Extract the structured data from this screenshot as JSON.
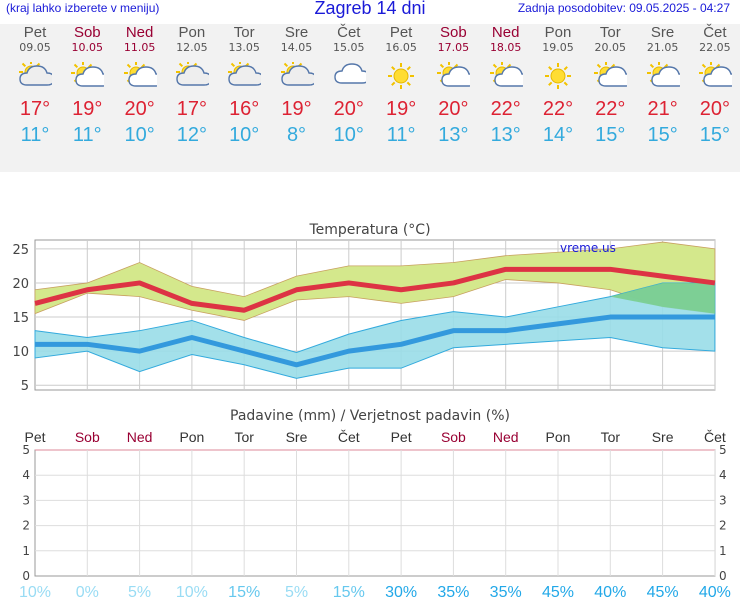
{
  "header": {
    "hint": "(kraj lahko izberete v meniju)",
    "title": "Zagreb 14 dni",
    "updated": "Zadnja posodobitev: 09.05.2025 - 04:27"
  },
  "days": [
    {
      "name": "Pet",
      "date": "09.05",
      "weekend": false,
      "icon": "partly-cloudy-rain-icon",
      "tmax": "17°",
      "tmin": "11°"
    },
    {
      "name": "Sob",
      "date": "10.05",
      "weekend": true,
      "icon": "sun-cloud-icon",
      "tmax": "19°",
      "tmin": "11°"
    },
    {
      "name": "Ned",
      "date": "11.05",
      "weekend": true,
      "icon": "sun-cloud-icon",
      "tmax": "20°",
      "tmin": "10°"
    },
    {
      "name": "Pon",
      "date": "12.05",
      "weekend": false,
      "icon": "partly-cloudy-rain-icon",
      "tmax": "17°",
      "tmin": "12°"
    },
    {
      "name": "Tor",
      "date": "13.05",
      "weekend": false,
      "icon": "partly-cloudy-rain-icon",
      "tmax": "16°",
      "tmin": "10°"
    },
    {
      "name": "Sre",
      "date": "14.05",
      "weekend": false,
      "icon": "partly-cloudy-rain-icon",
      "tmax": "19°",
      "tmin": "8°"
    },
    {
      "name": "Čet",
      "date": "15.05",
      "weekend": false,
      "icon": "cloud-icon",
      "tmax": "20°",
      "tmin": "10°"
    },
    {
      "name": "Pet",
      "date": "16.05",
      "weekend": false,
      "icon": "sun-icon",
      "tmax": "19°",
      "tmin": "11°"
    },
    {
      "name": "Sob",
      "date": "17.05",
      "weekend": true,
      "icon": "sun-cloud-icon",
      "tmax": "20°",
      "tmin": "13°"
    },
    {
      "name": "Ned",
      "date": "18.05",
      "weekend": true,
      "icon": "sun-cloud-icon",
      "tmax": "22°",
      "tmin": "13°"
    },
    {
      "name": "Pon",
      "date": "19.05",
      "weekend": false,
      "icon": "sun-icon",
      "tmax": "22°",
      "tmin": "14°"
    },
    {
      "name": "Tor",
      "date": "20.05",
      "weekend": false,
      "icon": "sun-cloud-icon",
      "tmax": "22°",
      "tmin": "15°"
    },
    {
      "name": "Sre",
      "date": "21.05",
      "weekend": false,
      "icon": "sun-cloud-icon",
      "tmax": "21°",
      "tmin": "15°"
    },
    {
      "name": "Čet",
      "date": "22.05",
      "weekend": false,
      "icon": "sun-cloud-icon",
      "tmax": "20°",
      "tmin": "15°"
    }
  ],
  "chart_data": [
    {
      "type": "line",
      "title": "Temperatura (°C)",
      "watermark": "vreme.us",
      "categories": [
        "Pet",
        "Sob",
        "Ned",
        "Pon",
        "Tor",
        "Sre",
        "Čet",
        "Pet",
        "Sob",
        "Ned",
        "Pon",
        "Tor",
        "Sre",
        "Čet"
      ],
      "ylim": [
        4.3,
        26.3
      ],
      "yticks": [
        5,
        10,
        15,
        20,
        25
      ],
      "series": [
        {
          "values": [
            17,
            19,
            20,
            17,
            16,
            19,
            20,
            19,
            20,
            22,
            22,
            22,
            21,
            20
          ],
          "color": "#dd3344"
        },
        {
          "values": [
            11,
            11,
            10,
            12,
            10,
            8,
            10,
            11,
            13,
            13,
            14,
            15,
            15,
            15
          ],
          "color": "#3399dd"
        }
      ],
      "max_band": {
        "upper": [
          19,
          20,
          23,
          19.5,
          18,
          21,
          22.5,
          22.5,
          23,
          24,
          24.5,
          25,
          26,
          25
        ],
        "lower": [
          15.5,
          18.5,
          18,
          16,
          14.5,
          17.5,
          18,
          17,
          18,
          20.5,
          20,
          19,
          16.5,
          15.5
        ],
        "color": "#d4e88c"
      },
      "min_band": {
        "upper": [
          13,
          12,
          13,
          14.5,
          12,
          9.8,
          12.5,
          14.5,
          15.8,
          15,
          16.5,
          18,
          20,
          20
        ],
        "lower": [
          9,
          10,
          7,
          9.5,
          8,
          6,
          7.5,
          7.5,
          10.5,
          11,
          11.5,
          12,
          10.5,
          10
        ],
        "color": "#99dde8"
      },
      "overlap_color": "#77cc88"
    },
    {
      "type": "bar",
      "title": "Padavine (mm) / Verjetnost padavin (%)",
      "categories": [
        "Pet",
        "Sob",
        "Ned",
        "Pon",
        "Tor",
        "Sre",
        "Čet",
        "Pet",
        "Sob",
        "Ned",
        "Pon",
        "Tor",
        "Sre",
        "Čet"
      ],
      "values": [
        0,
        0,
        0,
        0,
        0,
        0,
        0,
        0,
        0,
        0,
        0,
        0,
        0,
        0
      ],
      "ylim": [
        0,
        5
      ],
      "yticks": [
        0,
        1,
        2,
        3,
        4,
        5
      ],
      "probability": [
        "10%",
        "0%",
        "5%",
        "10%",
        "15%",
        "5%",
        "15%",
        "30%",
        "35%",
        "35%",
        "45%",
        "40%",
        "45%",
        "40%"
      ],
      "probability_values": [
        10,
        0,
        5,
        10,
        15,
        5,
        15,
        30,
        35,
        35,
        45,
        40,
        45,
        40
      ]
    }
  ]
}
